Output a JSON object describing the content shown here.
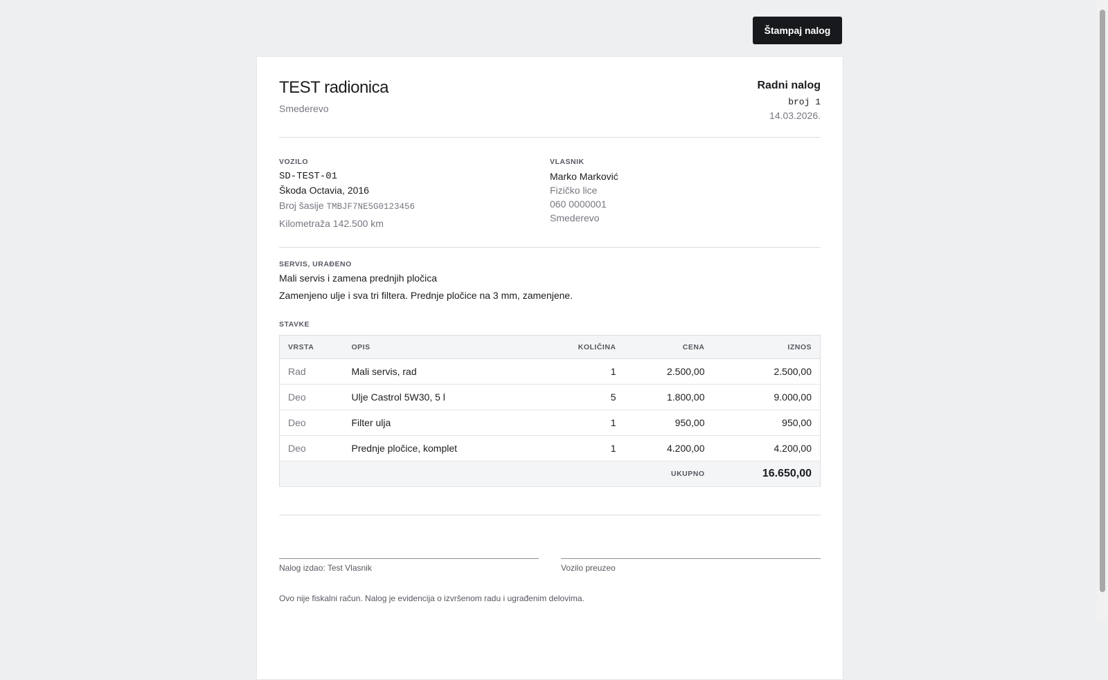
{
  "toolbar": {
    "print_button": "Štampaj nalog"
  },
  "header": {
    "shop_name": "TEST radionica",
    "shop_city": "Smederevo",
    "doc_title": "Radni nalog",
    "doc_number": "broj 1",
    "doc_date": "14.03.2026."
  },
  "vehicle": {
    "label": "VOZILO",
    "plate": "SD-TEST-01",
    "model": "Škoda Octavia, 2016",
    "vin_label": "Broj šasije",
    "vin": "TMBJF7NE5G0123456",
    "mileage": "Kilometraža 142.500 km"
  },
  "owner": {
    "label": "VLASNIK",
    "name": "Marko Marković",
    "type": "Fizičko lice",
    "phone": "060 0000001",
    "city": "Smederevo"
  },
  "service": {
    "label": "SERVIS, URAĐENO",
    "title": "Mali servis i zamena prednjih pločica",
    "notes": "Zamenjeno ulje i sva tri filtera. Prednje pločice na 3 mm, zamenjene."
  },
  "items": {
    "label": "STAVKE",
    "columns": [
      "VRSTA",
      "OPIS",
      "KOLIČINA",
      "CENA",
      "IZNOS"
    ],
    "rows": [
      [
        "Rad",
        "Mali servis, rad",
        "1",
        "2.500,00",
        "2.500,00"
      ],
      [
        "Deo",
        "Ulje Castrol 5W30, 5 l",
        "5",
        "1.800,00",
        "9.000,00"
      ],
      [
        "Deo",
        "Filter ulja",
        "1",
        "950,00",
        "950,00"
      ],
      [
        "Deo",
        "Prednje pločice, komplet",
        "1",
        "4.200,00",
        "4.200,00"
      ]
    ],
    "total_label": "UKUPNO",
    "total": "16.650,00"
  },
  "signatures": {
    "issued_by": "Nalog izdao: Test Vlasnik",
    "received_by": "Vozilo preuzeo"
  },
  "footer_note": "Ovo nije fiskalni račun. Nalog je evidencija o izvršenom radu i ugrađenim delovima."
}
